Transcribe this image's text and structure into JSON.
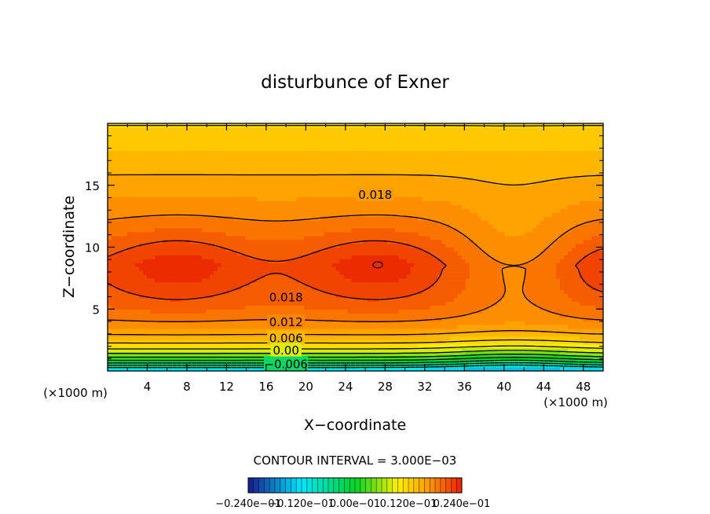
{
  "chart_data": {
    "type": "heatmap",
    "title": "disturbunce of Exner",
    "xlabel": "X−coordinate",
    "ylabel": "Z−coordinate",
    "x_unit": "(×1000 m)",
    "xlim": [
      0,
      50
    ],
    "ylim": [
      0,
      20
    ],
    "x_ticks": [
      "4",
      "8",
      "12",
      "16",
      "20",
      "24",
      "28",
      "32",
      "36",
      "40",
      "44",
      "48"
    ],
    "y_ticks": [
      "5",
      "10",
      "15"
    ],
    "contour_interval_text": "CONTOUR INTERVAL = 3.000E−03",
    "contour_labels": [
      {
        "text": "0.018",
        "x": 27.0,
        "y": 14.3
      },
      {
        "text": "0.018",
        "x": 18.0,
        "y": 6.0
      },
      {
        "text": "0.012",
        "x": 18.0,
        "y": 4.0
      },
      {
        "text": "0.006",
        "x": 18.0,
        "y": 2.7
      },
      {
        "text": "0.00",
        "x": 18.0,
        "y": 1.7
      },
      {
        "text": "−0.006",
        "x": 18.0,
        "y": 0.6
      }
    ],
    "colorbar_labels": [
      "−0.240",
      "−0.120",
      "0.00",
      "0.120",
      "0.240"
    ],
    "colorbar_suffix": "e−01",
    "colorbar_range": [
      -0.024,
      0.024
    ],
    "value_range_shown": [
      -0.012,
      0.024
    ],
    "max_value_approx": 0.0235,
    "center_x_km": 28
  }
}
